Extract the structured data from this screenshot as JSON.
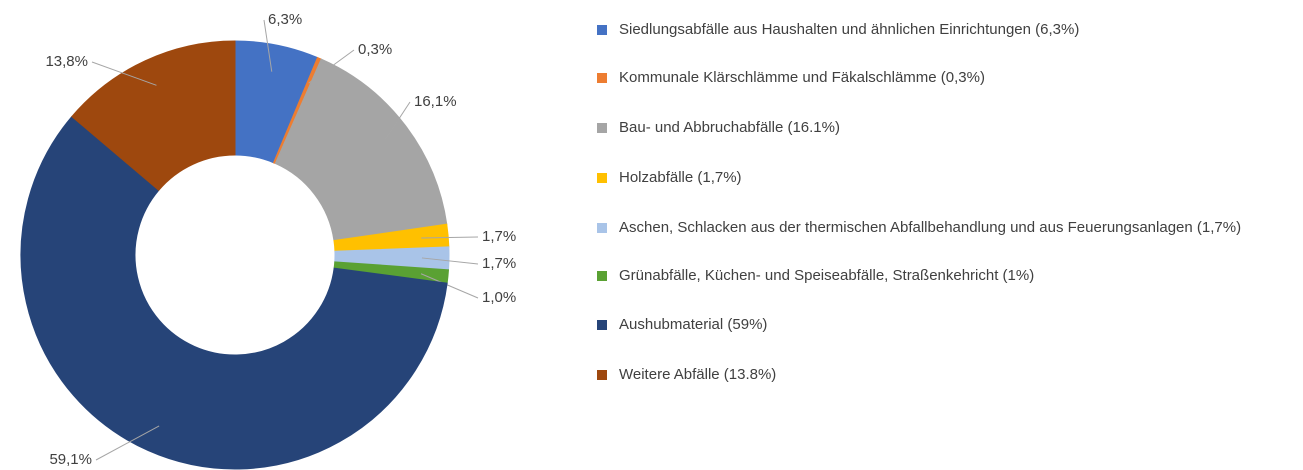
{
  "chart_data": {
    "type": "donut",
    "categories": [
      "Siedlungsabfälle aus Haushalten und ähnlichen Einrichtungen (6,3%)",
      "Kommunale Klärschlämme und Fäkalschlämme (0,3%)",
      "Bau- und Abbruchabfälle (16.1%)",
      "Holzabfälle (1,7%)",
      "Aschen, Schlacken aus der thermischen Abfallbehandlung und aus Feuerungsanlagen (1,7%)",
      "Grünabfälle, Küchen- und Speiseabfälle, Straßenkehricht (1%)",
      "Aushubmaterial (59%)",
      "Weitere Abfälle (13.8%)"
    ],
    "values": [
      6.3,
      0.3,
      16.1,
      1.7,
      1.7,
      1.0,
      59.1,
      13.8
    ],
    "value_labels": [
      "6,3%",
      "0,3%",
      "16,1%",
      "1,7%",
      "1,7%",
      "1,0%",
      "59,1%",
      "13,8%"
    ],
    "colors": [
      "#4472c4",
      "#ed7d31",
      "#a5a5a5",
      "#ffc000",
      "#a9c4e8",
      "#5aa133",
      "#264478",
      "#9e480e"
    ],
    "legend": "right"
  }
}
